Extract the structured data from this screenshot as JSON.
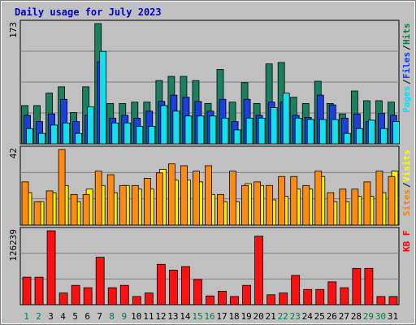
{
  "chart_data": {
    "type": "bar",
    "title": "Daily usage for July 2023",
    "days": [
      "1",
      "2",
      "3",
      "4",
      "5",
      "6",
      "7",
      "8",
      "9",
      "10",
      "11",
      "12",
      "13",
      "14",
      "15",
      "16",
      "17",
      "18",
      "19",
      "20",
      "21",
      "22",
      "23",
      "24",
      "25",
      "26",
      "27",
      "28",
      "29",
      "30",
      "31"
    ],
    "weekend_days": [
      "1",
      "2",
      "8",
      "9",
      "15",
      "16",
      "22",
      "23",
      "29",
      "30"
    ],
    "panels": [
      {
        "name": "pages-files-hits",
        "ymax_label": "173",
        "ymax": 173,
        "legend": [
          {
            "label": "Pages",
            "color": "#00e0ff"
          },
          {
            "label": "Files",
            "color": "#0040ff"
          },
          {
            "label": "Hits",
            "color": "#008040"
          }
        ],
        "series": [
          {
            "name": "Hits",
            "color": "#1a8060",
            "values": [
              55,
              55,
              73,
              82,
              45,
              82,
              173,
              58,
              58,
              60,
              60,
              91,
              97,
              97,
              91,
              58,
              107,
              60,
              88,
              58,
              115,
              117,
              67,
              58,
              90,
              58,
              43,
              76,
              62,
              62,
              60
            ]
          },
          {
            "name": "Files",
            "color": "#1a40e0",
            "values": [
              41,
              32,
              43,
              64,
              32,
              41,
              118,
              37,
              41,
              37,
              47,
              61,
              70,
              67,
              61,
              47,
              64,
              32,
              64,
              41,
              60,
              60,
              41,
              38,
              70,
              56,
              37,
              43,
              32,
              44,
              41
            ]
          },
          {
            "name": "Pages",
            "color": "#10e0f0",
            "values": [
              22,
              15,
              27,
              30,
              15,
              53,
              133,
              30,
              30,
              25,
              25,
              55,
              47,
              40,
              40,
              40,
              37,
              20,
              37,
              37,
              52,
              73,
              37,
              35,
              35,
              35,
              15,
              22,
              34,
              22,
              32
            ]
          }
        ]
      },
      {
        "name": "sites-visits",
        "ymax_label": "42",
        "ymax": 42,
        "legend": [
          {
            "label": "Sites",
            "color": "#ff8000"
          },
          {
            "label": "Visits",
            "color": "#ffff00"
          }
        ],
        "series": [
          {
            "name": "Visits",
            "color": "#ffef00",
            "values": [
              18,
              13,
              18,
              22,
              13,
              20,
              22,
              18,
              22,
              20,
              20,
              31,
              25,
              25,
              24,
              17,
              13,
              13,
              23,
              22,
              14,
              16,
              20,
              20,
              27,
              13,
              13,
              16,
              16,
              18,
              30
            ]
          },
          {
            "name": "Sites",
            "color": "#ff8c10",
            "values": [
              24,
              13,
              19,
              42,
              17,
              17,
              30,
              28,
              22,
              22,
              26,
              29,
              34,
              33,
              30,
              33,
              17,
              30,
              22,
              24,
              22,
              27,
              27,
              22,
              30,
              18,
              20,
              20,
              24,
              30,
              27
            ]
          }
        ]
      },
      {
        "name": "kbf",
        "ymax_label": "126239",
        "ymax": 126239,
        "legend": [
          {
            "label": "KB F",
            "color": "#ff0000"
          }
        ],
        "series": [
          {
            "name": "KB F",
            "color": "#ff1010",
            "values": [
              47000,
              47000,
              126239,
              20000,
              33000,
              29000,
              81000,
              29000,
              33000,
              14000,
              20000,
              69000,
              59000,
              65000,
              43000,
              15000,
              23000,
              14000,
              33000,
              117000,
              17000,
              20000,
              50000,
              26000,
              26000,
              39000,
              29000,
              62000,
              62000,
              14000,
              14000
            ]
          }
        ]
      }
    ]
  }
}
